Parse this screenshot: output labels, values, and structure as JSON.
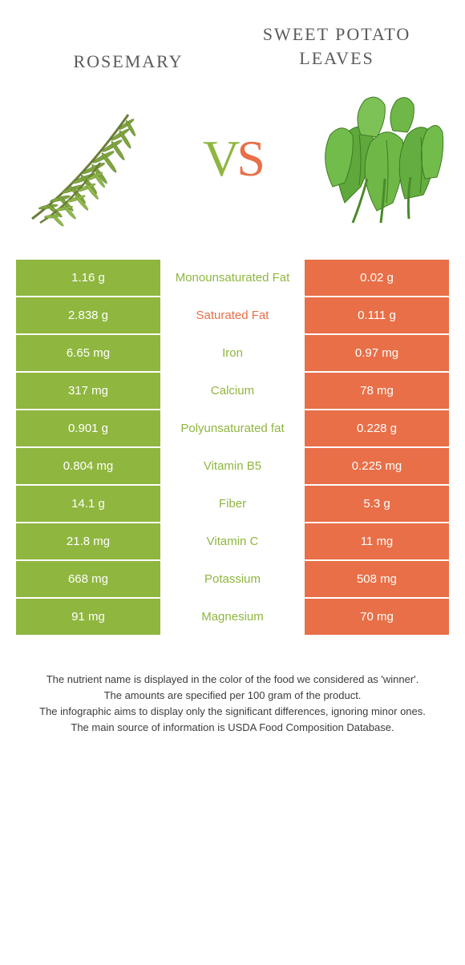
{
  "colors": {
    "left_bg": "#8fb63f",
    "right_bg": "#e86f47",
    "left_text": "#8fb63f",
    "right_text": "#e86f47",
    "cell_text": "#ffffff",
    "title_text": "#5a5a5a",
    "footer_text": "#3c3c3c",
    "page_bg": "#ffffff"
  },
  "header": {
    "left_title": "ROSEMARY",
    "right_title": "SWEET POTATO LEAVES",
    "vs_v": "V",
    "vs_s": "S"
  },
  "rows": [
    {
      "left": "1.16 g",
      "label": "Monounsaturated Fat",
      "right": "0.02 g",
      "winner": "left",
      "multiline": true
    },
    {
      "left": "2.838 g",
      "label": "Saturated Fat",
      "right": "0.111 g",
      "winner": "right"
    },
    {
      "left": "6.65 mg",
      "label": "Iron",
      "right": "0.97 mg",
      "winner": "left"
    },
    {
      "left": "317 mg",
      "label": "Calcium",
      "right": "78 mg",
      "winner": "left"
    },
    {
      "left": "0.901 g",
      "label": "Polyunsaturated fat",
      "right": "0.228 g",
      "winner": "left"
    },
    {
      "left": "0.804 mg",
      "label": "Vitamin B5",
      "right": "0.225 mg",
      "winner": "left"
    },
    {
      "left": "14.1 g",
      "label": "Fiber",
      "right": "5.3 g",
      "winner": "left"
    },
    {
      "left": "21.8 mg",
      "label": "Vitamin C",
      "right": "11 mg",
      "winner": "left"
    },
    {
      "left": "668 mg",
      "label": "Potassium",
      "right": "508 mg",
      "winner": "left"
    },
    {
      "left": "91 mg",
      "label": "Magnesium",
      "right": "70 mg",
      "winner": "left"
    }
  ],
  "footer": {
    "line1": "The nutrient name is displayed in the color of the food we considered as 'winner'.",
    "line2": "The amounts are specified per 100 gram of the product.",
    "line3": "The infographic aims to display only the significant differences, ignoring minor ones.",
    "line4": "The main source of information is USDA Food Composition Database."
  }
}
